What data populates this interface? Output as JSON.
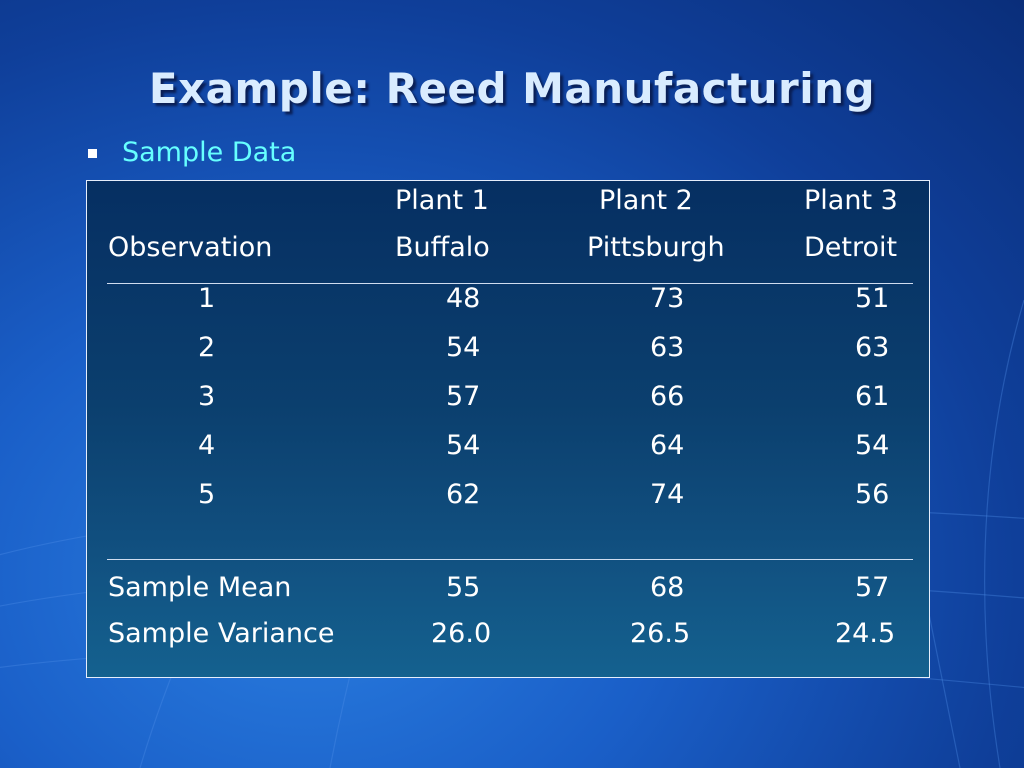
{
  "title": "Example:  Reed Manufacturing",
  "bullet": "Sample Data",
  "table": {
    "header_row1": [
      "",
      "Plant 1",
      "Plant 2",
      "Plant 3"
    ],
    "header_row2": [
      "Observation",
      "Buffalo",
      "Pittsburgh",
      "Detroit"
    ],
    "rows": [
      [
        "1",
        "48",
        "73",
        "51"
      ],
      [
        "2",
        "54",
        "63",
        "63"
      ],
      [
        "3",
        "57",
        "66",
        "61"
      ],
      [
        "4",
        "54",
        "64",
        "54"
      ],
      [
        "5",
        "62",
        "74",
        "56"
      ]
    ],
    "mean": [
      "Sample Mean",
      "55",
      "68",
      "57"
    ],
    "variance": [
      "Sample Variance",
      "26.0",
      "26.5",
      "24.5"
    ]
  },
  "colors": {
    "title": "#d9ecff",
    "bullet_text": "#66ffff",
    "background": "#1a5fc8"
  }
}
